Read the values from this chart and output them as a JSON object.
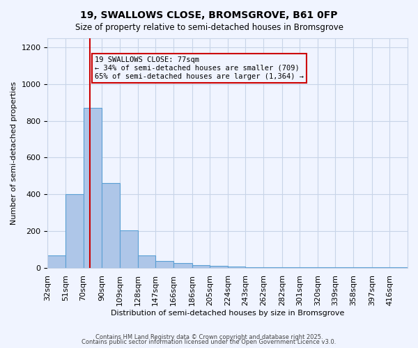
{
  "title1": "19, SWALLOWS CLOSE, BROMSGROVE, B61 0FP",
  "title2": "Size of property relative to semi-detached houses in Bromsgrove",
  "xlabel": "Distribution of semi-detached houses by size in Bromsgrove",
  "ylabel": "Number of semi-detached properties",
  "bin_labels": [
    "32sqm",
    "51sqm",
    "70sqm",
    "90sqm",
    "109sqm",
    "128sqm",
    "147sqm",
    "166sqm",
    "186sqm",
    "205sqm",
    "224sqm",
    "243sqm",
    "262sqm",
    "282sqm",
    "301sqm",
    "320sqm",
    "339sqm",
    "358sqm",
    "397sqm",
    "416sqm"
  ],
  "bin_edges": [
    32,
    51,
    70,
    90,
    109,
    128,
    147,
    166,
    186,
    205,
    224,
    243,
    262,
    282,
    301,
    320,
    339,
    358,
    378,
    397,
    416
  ],
  "bar_heights": [
    65,
    400,
    870,
    460,
    205,
    65,
    35,
    25,
    15,
    10,
    5,
    3,
    3,
    2,
    1,
    1,
    1,
    1,
    1,
    1
  ],
  "bar_color": "#aec6e8",
  "bar_edgecolor": "#5a9fd4",
  "property_size": 77,
  "vline_color": "#cc0000",
  "annotation_text": "19 SWALLOWS CLOSE: 77sqm\n← 34% of semi-detached houses are smaller (709)\n65% of semi-detached houses are larger (1,364) →",
  "annotation_box_edgecolor": "#cc0000",
  "ylim": [
    0,
    1250
  ],
  "yticks": [
    0,
    200,
    400,
    600,
    800,
    1000,
    1200
  ],
  "footer1": "Contains HM Land Registry data © Crown copyright and database right 2025.",
  "footer2": "Contains public sector information licensed under the Open Government Licence v3.0.",
  "bg_color": "#f0f4ff",
  "grid_color": "#c8d4e8"
}
